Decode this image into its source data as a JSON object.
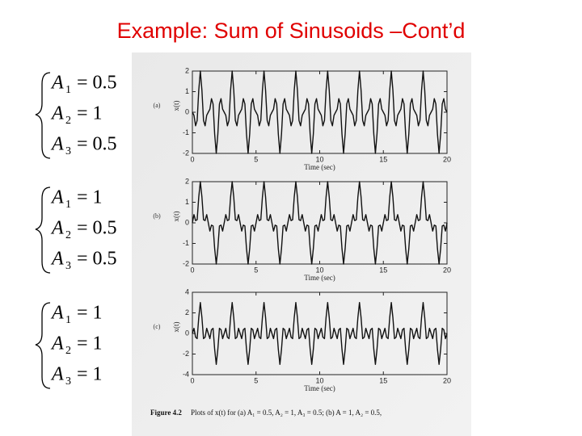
{
  "slide": {
    "title": "Example: Sum of Sinusoids –Cont’d",
    "equations": [
      [
        {
          "var": "A",
          "sub": "1",
          "rhs": "= 0.5"
        },
        {
          "var": "A",
          "sub": "2",
          "rhs": "= 1"
        },
        {
          "var": "A",
          "sub": "3",
          "rhs": "= 0.5"
        }
      ],
      [
        {
          "var": "A",
          "sub": "1",
          "rhs": "= 1"
        },
        {
          "var": "A",
          "sub": "2",
          "rhs": "= 0.5"
        },
        {
          "var": "A",
          "sub": "3",
          "rhs": "= 0.5"
        }
      ],
      [
        {
          "var": "A",
          "sub": "1",
          "rhs": "= 1"
        },
        {
          "var": "A",
          "sub": "2",
          "rhs": "= 1"
        },
        {
          "var": "A",
          "sub": "3",
          "rhs": "= 1"
        }
      ]
    ],
    "caption_label": "Figure 4.2",
    "caption": "Plots of x(t) for (a) A₁ = 0.5, A₂ = 1, A₃ = 0.5; (b) A = 1, A₂ = 0.5,"
  },
  "chart_data": [
    {
      "type": "line",
      "panel": "(a)",
      "ylabel": "x(t)",
      "xlabel": "Time (sec)",
      "xlim": [
        0,
        20
      ],
      "xticks": [
        0,
        5,
        10,
        15,
        20
      ],
      "ylim": [
        -2,
        2
      ],
      "yticks": [
        -2,
        -1,
        0,
        1,
        2
      ],
      "x": [
        0,
        0.125,
        0.25,
        0.375,
        0.5,
        0.625,
        0.75,
        0.875,
        1,
        1.125,
        1.25,
        1.375,
        1.5,
        1.625,
        1.75,
        1.875,
        2,
        2.125,
        2.25,
        2.375,
        2.5,
        2.625,
        2.75,
        2.875,
        3,
        3.125,
        3.25,
        3.375,
        3.5,
        3.625,
        3.75,
        3.875,
        4,
        4.125,
        4.25,
        4.375,
        4.5,
        4.625,
        4.75,
        4.875,
        5,
        5.125,
        5.25,
        5.375,
        5.5,
        5.625,
        5.75,
        5.875,
        6,
        6.125,
        6.25,
        6.375,
        6.5,
        6.625,
        6.75,
        6.875,
        7,
        7.125,
        7.25,
        7.375,
        7.5,
        7.625,
        7.75,
        7.875,
        8,
        8.125,
        8.25,
        8.375,
        8.5,
        8.625,
        8.75,
        8.875,
        9,
        9.125,
        9.25,
        9.375,
        9.5,
        9.625,
        9.75,
        9.875,
        10,
        10.125,
        10.25,
        10.375,
        10.5,
        10.625,
        10.75,
        10.875,
        11,
        11.125,
        11.25,
        11.375,
        11.5,
        11.625,
        11.75,
        11.875,
        12,
        12.125,
        12.25,
        12.375,
        12.5,
        12.625,
        12.75,
        12.875,
        13,
        13.125,
        13.25,
        13.375,
        13.5,
        13.625,
        13.75,
        13.875,
        14,
        14.125,
        14.25,
        14.375,
        14.5,
        14.625,
        14.75,
        14.875,
        15,
        15.125,
        15.25,
        15.375,
        15.5,
        15.625,
        15.75,
        15.875,
        16,
        16.125,
        16.25,
        16.375,
        16.5,
        16.625,
        16.75,
        16.875,
        17,
        17.125,
        17.25,
        17.375,
        17.5,
        17.625,
        17.75,
        17.875,
        18,
        18.125,
        18.25,
        18.375,
        18.5,
        18.625,
        18.75,
        18.875,
        19,
        19.125,
        19.25,
        19.375,
        19.5,
        19.625,
        19.75,
        19.875,
        20
      ],
      "series": [
        {
          "color": "#111111",
          "values": [
            0,
            -0.15,
            -0.66,
            -0.4,
            1.06,
            2,
            1.06,
            -0.4,
            -0.66,
            -0.15,
            0,
            0.15,
            0.66,
            0.4,
            -1.06,
            -2,
            -1.06,
            0.4,
            0.66,
            0.15,
            0,
            -0.15,
            -0.66,
            -0.4,
            1.06,
            2,
            1.06,
            -0.4,
            -0.66,
            -0.15,
            0,
            0.15,
            0.66,
            0.4,
            -1.06,
            -2,
            -1.06,
            0.4,
            0.66,
            0.15,
            0,
            -0.15,
            -0.66,
            -0.4,
            1.06,
            2,
            1.06,
            -0.4,
            -0.66,
            -0.15,
            0,
            0.15,
            0.66,
            0.4,
            -1.06,
            -2,
            -1.06,
            0.4,
            0.66,
            0.15,
            0,
            -0.15,
            -0.66,
            -0.4,
            1.06,
            2,
            1.06,
            -0.4,
            -0.66,
            -0.15,
            0,
            0.15,
            0.66,
            0.4,
            -1.06,
            -2,
            -1.06,
            0.4,
            0.66,
            0.15,
            0,
            -0.15,
            -0.66,
            -0.4,
            1.06,
            2,
            1.06,
            -0.4,
            -0.66,
            -0.15,
            0,
            0.15,
            0.66,
            0.4,
            -1.06,
            -2,
            -1.06,
            0.4,
            0.66,
            0.15,
            0,
            -0.15,
            -0.66,
            -0.4,
            1.06,
            2,
            1.06,
            -0.4,
            -0.66,
            -0.15,
            0,
            0.15,
            0.66,
            0.4,
            -1.06,
            -2,
            -1.06,
            0.4,
            0.66,
            0.15,
            0,
            -0.15,
            -0.66,
            -0.4,
            1.06,
            2,
            1.06,
            -0.4,
            -0.66,
            -0.15,
            0,
            0.15,
            0.66,
            0.4,
            -1.06,
            -2,
            -1.06,
            0.4,
            0.66,
            0.15,
            0,
            -0.15,
            -0.66,
            -0.4,
            1.06,
            2,
            1.06,
            -0.4,
            -0.66,
            -0.15,
            0,
            0.15,
            0.66,
            0.4,
            -1.06,
            -2,
            -1.06,
            0.4,
            0.66,
            0.15,
            0
          ]
        }
      ]
    },
    {
      "type": "line",
      "panel": "(b)",
      "ylabel": "x(t)",
      "xlabel": "Time (sec)",
      "xlim": [
        0,
        20
      ],
      "xticks": [
        0,
        5,
        10,
        15,
        20
      ],
      "ylim": [
        -2,
        2
      ],
      "yticks": [
        -2,
        -1,
        0,
        1,
        2
      ],
      "x": [
        0,
        0.125,
        0.25,
        0.375,
        0.5,
        0.625,
        0.75,
        0.875,
        1,
        1.125,
        1.25,
        1.375,
        1.5,
        1.625,
        1.75,
        1.875,
        2,
        2.125,
        2.25,
        2.375,
        2.5,
        2.625,
        2.75,
        2.875,
        3,
        3.125,
        3.25,
        3.375,
        3.5,
        3.625,
        3.75,
        3.875,
        4,
        4.125,
        4.25,
        4.375,
        4.5,
        4.625,
        4.75,
        4.875,
        5,
        5.125,
        5.25,
        5.375,
        5.5,
        5.625,
        5.75,
        5.875,
        6,
        6.125,
        6.25,
        6.375,
        6.5,
        6.625,
        6.75,
        6.875,
        7,
        7.125,
        7.25,
        7.375,
        7.5,
        7.625,
        7.75,
        7.875,
        8,
        8.125,
        8.25,
        8.375,
        8.5,
        8.625,
        8.75,
        8.875,
        9,
        9.125,
        9.25,
        9.375,
        9.5,
        9.625,
        9.75,
        9.875,
        10,
        10.125,
        10.25,
        10.375,
        10.5,
        10.625,
        10.75,
        10.875,
        11,
        11.125,
        11.25,
        11.375,
        11.5,
        11.625,
        11.75,
        11.875,
        12,
        12.125,
        12.25,
        12.375,
        12.5,
        12.625,
        12.75,
        12.875,
        13,
        13.125,
        13.25,
        13.375,
        13.5,
        13.625,
        13.75,
        13.875,
        14,
        14.125,
        14.25,
        14.375,
        14.5,
        14.625,
        14.75,
        14.875,
        15,
        15.125,
        15.25,
        15.375,
        15.5,
        15.625,
        15.75,
        15.875,
        16,
        16.125,
        16.25,
        16.375,
        16.5,
        16.625,
        16.75,
        16.875,
        17,
        17.125,
        17.25,
        17.375,
        17.5,
        17.625,
        17.75,
        17.875,
        18,
        18.125,
        18.25,
        18.375,
        18.5,
        18.625,
        18.75,
        18.875,
        19,
        19.125,
        19.25,
        19.375,
        19.5,
        19.625,
        19.75,
        19.875,
        20
      ],
      "series": [
        {
          "color": "#111111",
          "values": [
            0,
            0.4,
            0.11,
            0.15,
            1.25,
            2,
            1.25,
            0.15,
            0.11,
            0.4,
            0,
            -0.4,
            -0.11,
            -0.15,
            -1.25,
            -2,
            -1.25,
            -0.15,
            -0.11,
            -0.4,
            0,
            0.4,
            0.11,
            0.15,
            1.25,
            2,
            1.25,
            0.15,
            0.11,
            0.4,
            0,
            -0.4,
            -0.11,
            -0.15,
            -1.25,
            -2,
            -1.25,
            -0.15,
            -0.11,
            -0.4,
            0,
            0.4,
            0.11,
            0.15,
            1.25,
            2,
            1.25,
            0.15,
            0.11,
            0.4,
            0,
            -0.4,
            -0.11,
            -0.15,
            -1.25,
            -2,
            -1.25,
            -0.15,
            -0.11,
            -0.4,
            0,
            0.4,
            0.11,
            0.15,
            1.25,
            2,
            1.25,
            0.15,
            0.11,
            0.4,
            0,
            -0.4,
            -0.11,
            -0.15,
            -1.25,
            -2,
            -1.25,
            -0.15,
            -0.11,
            -0.4,
            0,
            0.4,
            0.11,
            0.15,
            1.25,
            2,
            1.25,
            0.15,
            0.11,
            0.4,
            0,
            -0.4,
            -0.11,
            -0.15,
            -1.25,
            -2,
            -1.25,
            -0.15,
            -0.11,
            -0.4,
            0,
            0.4,
            0.11,
            0.15,
            1.25,
            2,
            1.25,
            0.15,
            0.11,
            0.4,
            0,
            -0.4,
            -0.11,
            -0.15,
            -1.25,
            -2,
            -1.25,
            -0.15,
            -0.11,
            -0.4,
            0,
            0.4,
            0.11,
            0.15,
            1.25,
            2,
            1.25,
            0.15,
            0.11,
            0.4,
            0,
            -0.4,
            -0.11,
            -0.15,
            -1.25,
            -2,
            -1.25,
            -0.15,
            -0.11,
            -0.4,
            0,
            0.4,
            0.11,
            0.15,
            1.25,
            2,
            1.25,
            0.15,
            0.11,
            0.4,
            0,
            -0.4,
            -0.11,
            -0.15,
            -1.25,
            -2,
            -1.25,
            -0.15,
            -0.11,
            -0.4,
            0
          ]
        }
      ]
    },
    {
      "type": "line",
      "panel": "(c)",
      "ylabel": "x(t)",
      "xlabel": "Time (sec)",
      "xlim": [
        0,
        20
      ],
      "xticks": [
        0,
        5,
        10,
        15,
        20
      ],
      "ylim": [
        -4,
        4
      ],
      "yticks": [
        -4,
        -2,
        0,
        2,
        4
      ],
      "x": [
        0,
        0.125,
        0.25,
        0.375,
        0.5,
        0.625,
        0.75,
        0.875,
        1,
        1.125,
        1.25,
        1.375,
        1.5,
        1.625,
        1.75,
        1.875,
        2,
        2.125,
        2.25,
        2.375,
        2.5,
        2.625,
        2.75,
        2.875,
        3,
        3.125,
        3.25,
        3.375,
        3.5,
        3.625,
        3.75,
        3.875,
        4,
        4.125,
        4.25,
        4.375,
        4.5,
        4.625,
        4.75,
        4.875,
        5,
        5.125,
        5.25,
        5.375,
        5.5,
        5.625,
        5.75,
        5.875,
        6,
        6.125,
        6.25,
        6.375,
        6.5,
        6.625,
        6.75,
        6.875,
        7,
        7.125,
        7.25,
        7.375,
        7.5,
        7.625,
        7.75,
        7.875,
        8,
        8.125,
        8.25,
        8.375,
        8.5,
        8.625,
        8.75,
        8.875,
        9,
        9.125,
        9.25,
        9.375,
        9.5,
        9.625,
        9.75,
        9.875,
        10,
        10.125,
        10.25,
        10.375,
        10.5,
        10.625,
        10.75,
        10.875,
        11,
        11.125,
        11.25,
        11.375,
        11.5,
        11.625,
        11.75,
        11.875,
        12,
        12.125,
        12.25,
        12.375,
        12.5,
        12.625,
        12.75,
        12.875,
        13,
        13.125,
        13.25,
        13.375,
        13.5,
        13.625,
        13.75,
        13.875,
        14,
        14.125,
        14.25,
        14.375,
        14.5,
        14.625,
        14.75,
        14.875,
        15,
        15.125,
        15.25,
        15.375,
        15.5,
        15.625,
        15.75,
        15.875,
        16,
        16.125,
        16.25,
        16.375,
        16.5,
        16.625,
        16.75,
        16.875,
        17,
        17.125,
        17.25,
        17.375,
        17.5,
        17.625,
        17.75,
        17.875,
        18,
        18.125,
        18.25,
        18.375,
        18.5,
        18.625,
        18.75,
        18.875,
        19,
        19.125,
        19.25,
        19.375,
        19.5,
        19.625,
        19.75,
        19.875,
        20
      ],
      "series": [
        {
          "color": "#111111",
          "values": [
            0,
            0.5,
            -0.36,
            -0.5,
            1.54,
            3,
            1.54,
            -0.5,
            -0.36,
            0.5,
            0,
            -0.5,
            0.36,
            0.5,
            -1.54,
            -3,
            -1.54,
            0.5,
            0.36,
            -0.5,
            0,
            0.5,
            -0.36,
            -0.5,
            1.54,
            3,
            1.54,
            -0.5,
            -0.36,
            0.5,
            0,
            -0.5,
            0.36,
            0.5,
            -1.54,
            -3,
            -1.54,
            0.5,
            0.36,
            -0.5,
            0,
            0.5,
            -0.36,
            -0.5,
            1.54,
            3,
            1.54,
            -0.5,
            -0.36,
            0.5,
            0,
            -0.5,
            0.36,
            0.5,
            -1.54,
            -3,
            -1.54,
            0.5,
            0.36,
            -0.5,
            0,
            0.5,
            -0.36,
            -0.5,
            1.54,
            3,
            1.54,
            -0.5,
            -0.36,
            0.5,
            0,
            -0.5,
            0.36,
            0.5,
            -1.54,
            -3,
            -1.54,
            0.5,
            0.36,
            -0.5,
            0,
            0.5,
            -0.36,
            -0.5,
            1.54,
            3,
            1.54,
            -0.5,
            -0.36,
            0.5,
            0,
            -0.5,
            0.36,
            0.5,
            -1.54,
            -3,
            -1.54,
            0.5,
            0.36,
            -0.5,
            0,
            0.5,
            -0.36,
            -0.5,
            1.54,
            3,
            1.54,
            -0.5,
            -0.36,
            0.5,
            0,
            -0.5,
            0.36,
            0.5,
            -1.54,
            -3,
            -1.54,
            0.5,
            0.36,
            -0.5,
            0,
            0.5,
            -0.36,
            -0.5,
            1.54,
            3,
            1.54,
            -0.5,
            -0.36,
            0.5,
            0,
            -0.5,
            0.36,
            0.5,
            -1.54,
            -3,
            -1.54,
            0.5,
            0.36,
            -0.5,
            0,
            0.5,
            -0.36,
            -0.5,
            1.54,
            3,
            1.54,
            -0.5,
            -0.36,
            0.5,
            0,
            -0.5,
            0.36,
            0.5,
            -1.54,
            -3,
            -1.54,
            0.5,
            0.36,
            -0.5,
            0
          ]
        }
      ]
    }
  ]
}
